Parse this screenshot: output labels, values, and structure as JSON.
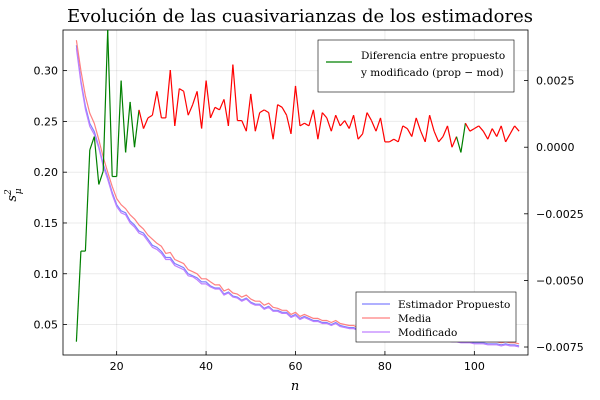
{
  "chart_data": {
    "type": "line",
    "title": "Evolución de las cuasivarianzas de los estimadores",
    "xlabel": "n",
    "ylabel": "s²_μ",
    "x_ticks": [
      20,
      40,
      60,
      80,
      100
    ],
    "y_left_ticks": [
      0.05,
      0.1,
      0.15,
      0.2,
      0.25,
      0.3
    ],
    "y_left_tick_labels": [
      "0.05",
      "0.10",
      "0.15",
      "0.20",
      "0.25",
      "0.30"
    ],
    "y_right_ticks": [
      0.0025,
      0.0,
      -0.0025,
      -0.005,
      -0.0075
    ],
    "y_right_tick_labels": [
      "0.0025",
      "0.0000",
      "−0.0025",
      "−0.0050",
      "−0.0075"
    ],
    "xlim": [
      8,
      112
    ],
    "ylim_left": [
      0.02,
      0.34
    ],
    "ylim_right": [
      -0.0078,
      0.0044
    ],
    "grid": true,
    "legend_top": {
      "placement": "top-right",
      "entries": [
        {
          "label": "Diferencia entre propuesto",
          "color": "#008000"
        },
        {
          "label": "y modificado (prop − mod)",
          "color": null
        }
      ]
    },
    "legend_bottom": {
      "placement": "bottom-right",
      "entries": [
        {
          "label": "Estimador Propuesto",
          "color": "#8080ff"
        },
        {
          "label": "Media",
          "color": "#ff8080"
        },
        {
          "label": "Modificado",
          "color": "#bf80ff"
        }
      ]
    },
    "diff_colors": {
      "negative": "#008000",
      "positive": "#ff0000"
    },
    "series_left": [
      {
        "name": "Estimador Propuesto",
        "color": "#8080ff",
        "x": [
          11,
          12,
          13,
          14,
          15,
          16,
          17,
          18,
          19,
          20,
          21,
          22,
          23,
          24,
          25,
          26,
          27,
          28,
          29,
          30,
          31,
          32,
          33,
          34,
          35,
          36,
          37,
          38,
          39,
          40,
          41,
          42,
          43,
          44,
          45,
          46,
          47,
          48,
          49,
          50,
          51,
          52,
          53,
          54,
          55,
          56,
          57,
          58,
          59,
          60,
          61,
          62,
          63,
          64,
          65,
          66,
          67,
          68,
          69,
          70,
          71,
          72,
          73,
          74,
          75,
          76,
          77,
          78,
          79,
          80,
          81,
          82,
          83,
          84,
          85,
          86,
          87,
          88,
          89,
          90,
          91,
          92,
          93,
          94,
          95,
          96,
          97,
          98,
          99,
          100,
          101,
          102,
          103,
          104,
          105,
          106,
          107,
          108,
          109,
          110
        ],
        "y": [
          0.325,
          0.29,
          0.265,
          0.248,
          0.24,
          0.225,
          0.208,
          0.195,
          0.18,
          0.168,
          0.162,
          0.16,
          0.152,
          0.148,
          0.142,
          0.14,
          0.134,
          0.128,
          0.126,
          0.122,
          0.116,
          0.116,
          0.11,
          0.108,
          0.106,
          0.1,
          0.098,
          0.096,
          0.092,
          0.092,
          0.088,
          0.086,
          0.086,
          0.08,
          0.082,
          0.078,
          0.077,
          0.074,
          0.076,
          0.072,
          0.07,
          0.07,
          0.066,
          0.068,
          0.064,
          0.064,
          0.062,
          0.062,
          0.058,
          0.06,
          0.056,
          0.058,
          0.056,
          0.054,
          0.054,
          0.052,
          0.052,
          0.05,
          0.052,
          0.049,
          0.048,
          0.047,
          0.047,
          0.045,
          0.046,
          0.044,
          0.044,
          0.043,
          0.043,
          0.041,
          0.042,
          0.041,
          0.04,
          0.04,
          0.039,
          0.038,
          0.039,
          0.037,
          0.037,
          0.036,
          0.036,
          0.036,
          0.035,
          0.035,
          0.034,
          0.034,
          0.033,
          0.033,
          0.033,
          0.032,
          0.032,
          0.032,
          0.031,
          0.031,
          0.031,
          0.03,
          0.031,
          0.03,
          0.03,
          0.029
        ]
      },
      {
        "name": "Media",
        "color": "#ff8080",
        "x": [
          11,
          12,
          13,
          14,
          15,
          16,
          17,
          18,
          19,
          20,
          21,
          22,
          23,
          24,
          25,
          26,
          27,
          28,
          29,
          30,
          31,
          32,
          33,
          34,
          35,
          36,
          37,
          38,
          39,
          40,
          41,
          42,
          43,
          44,
          45,
          46,
          47,
          48,
          49,
          50,
          51,
          52,
          53,
          54,
          55,
          56,
          57,
          58,
          59,
          60,
          61,
          62,
          63,
          64,
          65,
          66,
          67,
          68,
          69,
          70,
          71,
          72,
          73,
          74,
          75,
          76,
          77,
          78,
          79,
          80,
          81,
          82,
          83,
          84,
          85,
          86,
          87,
          88,
          89,
          90,
          91,
          92,
          93,
          94,
          95,
          96,
          97,
          98,
          99,
          100,
          101,
          102,
          103,
          104,
          105,
          106,
          107,
          108,
          109,
          110
        ],
        "y": [
          0.33,
          0.3,
          0.275,
          0.258,
          0.248,
          0.232,
          0.215,
          0.2,
          0.186,
          0.174,
          0.168,
          0.164,
          0.158,
          0.154,
          0.148,
          0.144,
          0.138,
          0.134,
          0.13,
          0.127,
          0.12,
          0.121,
          0.114,
          0.112,
          0.11,
          0.104,
          0.102,
          0.1,
          0.095,
          0.095,
          0.092,
          0.089,
          0.089,
          0.083,
          0.085,
          0.081,
          0.08,
          0.077,
          0.079,
          0.075,
          0.073,
          0.073,
          0.069,
          0.071,
          0.067,
          0.066,
          0.064,
          0.064,
          0.06,
          0.062,
          0.058,
          0.06,
          0.058,
          0.056,
          0.056,
          0.054,
          0.054,
          0.052,
          0.054,
          0.051,
          0.05,
          0.049,
          0.049,
          0.047,
          0.048,
          0.046,
          0.046,
          0.045,
          0.045,
          0.043,
          0.044,
          0.043,
          0.042,
          0.042,
          0.041,
          0.04,
          0.041,
          0.039,
          0.039,
          0.038,
          0.038,
          0.038,
          0.037,
          0.037,
          0.036,
          0.036,
          0.035,
          0.035,
          0.035,
          0.034,
          0.034,
          0.034,
          0.033,
          0.033,
          0.033,
          0.032,
          0.033,
          0.032,
          0.032,
          0.031
        ]
      },
      {
        "name": "Modificado",
        "color": "#bf80ff",
        "x": [
          11,
          12,
          13,
          14,
          15,
          16,
          17,
          18,
          19,
          20,
          21,
          22,
          23,
          24,
          25,
          26,
          27,
          28,
          29,
          30,
          31,
          32,
          33,
          34,
          35,
          36,
          37,
          38,
          39,
          40,
          41,
          42,
          43,
          44,
          45,
          46,
          47,
          48,
          49,
          50,
          51,
          52,
          53,
          54,
          55,
          56,
          57,
          58,
          59,
          60,
          61,
          62,
          63,
          64,
          65,
          66,
          67,
          68,
          69,
          70,
          71,
          72,
          73,
          74,
          75,
          76,
          77,
          78,
          79,
          80,
          81,
          82,
          83,
          84,
          85,
          86,
          87,
          88,
          89,
          90,
          91,
          92,
          93,
          94,
          95,
          96,
          97,
          98,
          99,
          100,
          101,
          102,
          103,
          104,
          105,
          106,
          107,
          108,
          109,
          110
        ],
        "y": [
          0.322,
          0.288,
          0.262,
          0.245,
          0.237,
          0.224,
          0.206,
          0.193,
          0.178,
          0.166,
          0.16,
          0.158,
          0.15,
          0.146,
          0.14,
          0.138,
          0.132,
          0.126,
          0.124,
          0.12,
          0.114,
          0.114,
          0.108,
          0.106,
          0.104,
          0.098,
          0.097,
          0.094,
          0.09,
          0.09,
          0.087,
          0.085,
          0.085,
          0.079,
          0.081,
          0.077,
          0.076,
          0.073,
          0.075,
          0.071,
          0.069,
          0.069,
          0.065,
          0.067,
          0.063,
          0.063,
          0.061,
          0.061,
          0.057,
          0.059,
          0.055,
          0.057,
          0.055,
          0.053,
          0.053,
          0.051,
          0.051,
          0.049,
          0.051,
          0.048,
          0.047,
          0.046,
          0.046,
          0.044,
          0.045,
          0.043,
          0.043,
          0.042,
          0.042,
          0.04,
          0.041,
          0.04,
          0.039,
          0.039,
          0.038,
          0.037,
          0.038,
          0.036,
          0.036,
          0.035,
          0.035,
          0.035,
          0.034,
          0.034,
          0.033,
          0.033,
          0.032,
          0.032,
          0.032,
          0.031,
          0.031,
          0.031,
          0.03,
          0.03,
          0.03,
          0.029,
          0.03,
          0.029,
          0.029,
          0.028
        ]
      }
    ],
    "series_right": {
      "name": "Diferencia entre propuesto y modificado (prop − mod)",
      "x": [
        11,
        12,
        13,
        14,
        15,
        16,
        17,
        18,
        19,
        20,
        21,
        22,
        23,
        24,
        25,
        26,
        27,
        28,
        29,
        30,
        31,
        32,
        33,
        34,
        35,
        36,
        37,
        38,
        39,
        40,
        41,
        42,
        43,
        44,
        45,
        46,
        47,
        48,
        49,
        50,
        51,
        52,
        53,
        54,
        55,
        56,
        57,
        58,
        59,
        60,
        61,
        62,
        63,
        64,
        65,
        66,
        67,
        68,
        69,
        70,
        71,
        72,
        73,
        74,
        75,
        76,
        77,
        78,
        79,
        80,
        81,
        82,
        83,
        84,
        85,
        86,
        87,
        88,
        89,
        90,
        91,
        92,
        93,
        94,
        95,
        96,
        97,
        98,
        99,
        100,
        101,
        102,
        103,
        104,
        105,
        106,
        107,
        108,
        109,
        110
      ],
      "y": [
        -0.0073,
        -0.0039,
        -0.0039,
        -0.0001,
        0.0004,
        -0.0014,
        -0.0009,
        0.0044,
        -0.0011,
        -0.0011,
        0.0025,
        -0.0002,
        0.0017,
        0.0,
        0.0014,
        0.0007,
        0.0011,
        0.0012,
        0.0021,
        0.0011,
        0.0011,
        0.0029,
        0.0008,
        0.0022,
        0.0021,
        0.0012,
        0.0016,
        0.0021,
        0.0007,
        0.0025,
        0.0011,
        0.0015,
        0.0014,
        0.0018,
        0.0008,
        0.0031,
        0.001,
        0.001,
        0.0006,
        0.002,
        0.0006,
        0.0013,
        0.0014,
        0.0013,
        0.0003,
        0.0016,
        0.0015,
        0.0012,
        0.0005,
        0.0023,
        0.0008,
        0.0009,
        0.0008,
        0.0014,
        0.0003,
        0.0013,
        0.0011,
        0.0006,
        0.0012,
        0.0008,
        0.001,
        0.0007,
        0.0012,
        0.0003,
        0.0005,
        0.0013,
        0.001,
        0.0006,
        0.0011,
        0.0002,
        0.0002,
        0.0003,
        0.0002,
        0.0008,
        0.0007,
        0.0004,
        0.0011,
        0.0006,
        0.0002,
        0.0012,
        0.0006,
        0.0002,
        0.0004,
        0.0008,
        0.0,
        0.0004,
        -0.0002,
        0.0009,
        0.0006,
        0.0007,
        0.0008,
        0.0006,
        0.0003,
        0.0007,
        0.0004,
        0.0008,
        0.0002,
        0.0005,
        0.0008,
        0.0006
      ]
    }
  }
}
